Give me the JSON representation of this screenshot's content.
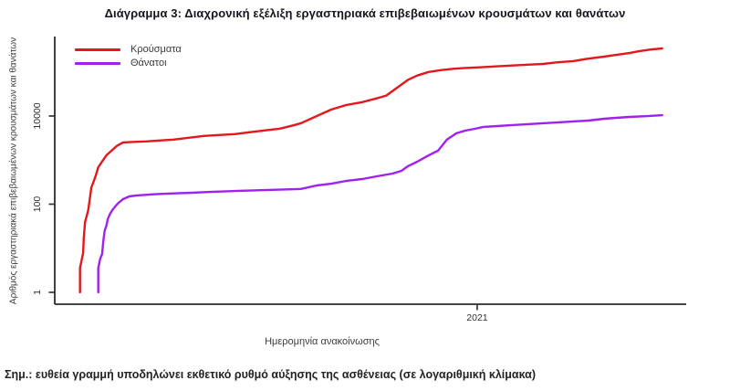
{
  "page": {
    "title": "Διάγραμμα 3: Διαχρονική εξέλιξη εργαστηριακά επιβεβαιωμένων κρουσμάτων και θανάτων",
    "note": "Σημ.: ευθεία γραμμή υποδηλώνει εκθετικό ρυθμό αύξησης της ασθένειας (σε λογαριθμική κλίμακα)"
  },
  "chart_data": {
    "type": "line",
    "title": "Διάγραμμα 3: Διαχρονική εξέλιξη εργαστηριακά επιβεβαιωμένων κρουσμάτων και θανάτων",
    "x_axis": {
      "label": "Ημερομηνία ανακοίνωσης",
      "ticks": [
        {
          "label": "2021",
          "frac": 0.669
        }
      ]
    },
    "y_axis": {
      "label": "Αριθμός εργαστηριακά επιβεβαιωμένων κρουσμάτων και θανάτων",
      "scale": "log",
      "ticks": [
        1,
        100,
        10000
      ],
      "range": [
        1,
        400000
      ]
    },
    "legend": {
      "position": "top-left"
    },
    "axis_color": "#2b2b2b",
    "series": [
      {
        "name": "Κρούσματα",
        "color": "#e4181c",
        "data_name": "cases-line",
        "points": [
          [
            0.04,
            1
          ],
          [
            0.04,
            3.6
          ],
          [
            0.043,
            5.8
          ],
          [
            0.045,
            7.8
          ],
          [
            0.046,
            17
          ],
          [
            0.048,
            39
          ],
          [
            0.051,
            57
          ],
          [
            0.053,
            73
          ],
          [
            0.055,
            118
          ],
          [
            0.058,
            240
          ],
          [
            0.061,
            310
          ],
          [
            0.065,
            450
          ],
          [
            0.069,
            690
          ],
          [
            0.075,
            930
          ],
          [
            0.082,
            1290
          ],
          [
            0.09,
            1640
          ],
          [
            0.098,
            2080
          ],
          [
            0.108,
            2520
          ],
          [
            0.118,
            2560
          ],
          [
            0.13,
            2600
          ],
          [
            0.145,
            2650
          ],
          [
            0.163,
            2770
          ],
          [
            0.188,
            2920
          ],
          [
            0.212,
            3210
          ],
          [
            0.236,
            3530
          ],
          [
            0.26,
            3700
          ],
          [
            0.285,
            3880
          ],
          [
            0.308,
            4270
          ],
          [
            0.332,
            4700
          ],
          [
            0.357,
            5170
          ],
          [
            0.38,
            6250
          ],
          [
            0.39,
            6900
          ],
          [
            0.415,
            10000
          ],
          [
            0.438,
            14000
          ],
          [
            0.462,
            17800
          ],
          [
            0.487,
            20700
          ],
          [
            0.51,
            25200
          ],
          [
            0.525,
            29100
          ],
          [
            0.535,
            36900
          ],
          [
            0.545,
            47000
          ],
          [
            0.559,
            65600
          ],
          [
            0.574,
            83000
          ],
          [
            0.592,
            100000
          ],
          [
            0.611,
            110000
          ],
          [
            0.631,
            118000
          ],
          [
            0.65,
            123000
          ],
          [
            0.676,
            128000
          ],
          [
            0.701,
            134000
          ],
          [
            0.725,
            140000
          ],
          [
            0.749,
            146000
          ],
          [
            0.773,
            152000
          ],
          [
            0.798,
            166000
          ],
          [
            0.821,
            176000
          ],
          [
            0.845,
            200000
          ],
          [
            0.87,
            222000
          ],
          [
            0.889,
            243000
          ],
          [
            0.91,
            268000
          ],
          [
            0.925,
            295000
          ],
          [
            0.944,
            323000
          ],
          [
            0.962,
            341000
          ]
        ]
      },
      {
        "name": "Θάνατοι",
        "color": "#a020f0",
        "data_name": "deaths-line",
        "points": [
          [
            0.069,
            1
          ],
          [
            0.069,
            3.6
          ],
          [
            0.072,
            5.8
          ],
          [
            0.075,
            7.4
          ],
          [
            0.077,
            15
          ],
          [
            0.079,
            25
          ],
          [
            0.082,
            33
          ],
          [
            0.084,
            46
          ],
          [
            0.087,
            58
          ],
          [
            0.091,
            73
          ],
          [
            0.097,
            93
          ],
          [
            0.101,
            107
          ],
          [
            0.108,
            130
          ],
          [
            0.118,
            150
          ],
          [
            0.13,
            158
          ],
          [
            0.159,
            168
          ],
          [
            0.188,
            176
          ],
          [
            0.217,
            182
          ],
          [
            0.246,
            190
          ],
          [
            0.285,
            199
          ],
          [
            0.332,
            209
          ],
          [
            0.38,
            219
          ],
          [
            0.39,
            222
          ],
          [
            0.415,
            266
          ],
          [
            0.438,
            291
          ],
          [
            0.462,
            338
          ],
          [
            0.487,
            372
          ],
          [
            0.51,
            428
          ],
          [
            0.535,
            495
          ],
          [
            0.549,
            571
          ],
          [
            0.559,
            721
          ],
          [
            0.574,
            920
          ],
          [
            0.592,
            1280
          ],
          [
            0.607,
            1630
          ],
          [
            0.621,
            2900
          ],
          [
            0.636,
            4050
          ],
          [
            0.65,
            4670
          ],
          [
            0.665,
            5130
          ],
          [
            0.679,
            5660
          ],
          [
            0.701,
            5930
          ],
          [
            0.725,
            6230
          ],
          [
            0.749,
            6530
          ],
          [
            0.773,
            6850
          ],
          [
            0.798,
            7180
          ],
          [
            0.821,
            7530
          ],
          [
            0.845,
            7890
          ],
          [
            0.87,
            8670
          ],
          [
            0.889,
            9080
          ],
          [
            0.91,
            9520
          ],
          [
            0.939,
            9970
          ],
          [
            0.962,
            10450
          ]
        ]
      }
    ]
  }
}
